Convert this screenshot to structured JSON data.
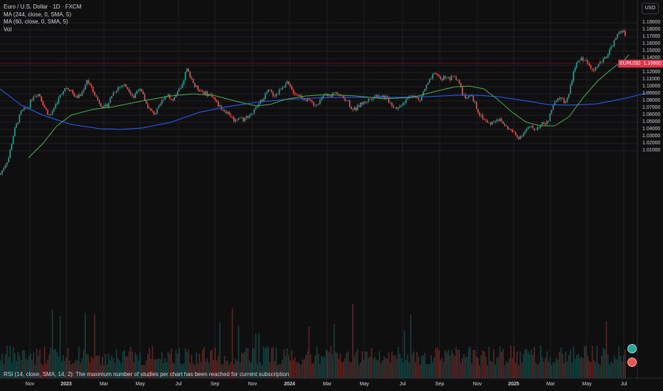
{
  "legend": {
    "title": "Euro / U.S. Dollar · 1D · FXCM",
    "ma1": "MA (244, close, 0, SMA, 5)",
    "ma2": "MA (60, close, 0, SMA, 5)",
    "vol": "Vol"
  },
  "rsi_note": "RSI (14, close, SMA, 14, 2): The maximum number of studies per chart has been reached for current subscription",
  "currency": "USD",
  "last_price": {
    "symbol": "EURUSD",
    "value": "1.16880"
  },
  "colors": {
    "up": "#26a69a",
    "down": "#ef5350",
    "ma244": "#2962ff",
    "ma60": "#4caf50",
    "tag": "#e1334a"
  },
  "icons": [
    "gear-icon",
    "alert-icon"
  ],
  "chart_data": {
    "type": "candlestick",
    "title": "Euro / U.S. Dollar · 1D · FXCM",
    "ylim": [
      1.0,
      1.195
    ],
    "y_ticks": [
      "1.19000",
      "1.18000",
      "1.17000",
      "1.16000",
      "1.15000",
      "1.14000",
      "1.13000",
      "1.12000",
      "1.11000",
      "1.10000",
      "1.09000",
      "1.08000",
      "1.07000",
      "1.06000",
      "1.05000",
      "1.04000",
      "1.03000",
      "1.02000",
      "1.01000"
    ],
    "x_ticks": [
      "Nov",
      "2023",
      "Mar",
      "May",
      "Jul",
      "Sep",
      "Nov",
      "2024",
      "Mar",
      "May",
      "Jul",
      "Sep",
      "Nov",
      "2025",
      "Mar",
      "May",
      "Jul"
    ],
    "close_path": [
      [
        0,
        0.976
      ],
      [
        12,
        1.0
      ],
      [
        20,
        1.038
      ],
      [
        30,
        1.065
      ],
      [
        40,
        1.072
      ],
      [
        47,
        1.088
      ],
      [
        55,
        1.09
      ],
      [
        62,
        1.072
      ],
      [
        70,
        1.058
      ],
      [
        78,
        1.075
      ],
      [
        86,
        1.09
      ],
      [
        92,
        1.1
      ],
      [
        100,
        1.095
      ],
      [
        106,
        1.085
      ],
      [
        114,
        1.088
      ],
      [
        122,
        1.11
      ],
      [
        130,
        1.095
      ],
      [
        138,
        1.08
      ],
      [
        146,
        1.07
      ],
      [
        152,
        1.076
      ],
      [
        158,
        1.09
      ],
      [
        166,
        1.099
      ],
      [
        174,
        1.103
      ],
      [
        182,
        1.095
      ],
      [
        188,
        1.085
      ],
      [
        194,
        1.098
      ],
      [
        200,
        1.09
      ],
      [
        206,
        1.075
      ],
      [
        212,
        1.065
      ],
      [
        218,
        1.062
      ],
      [
        224,
        1.072
      ],
      [
        230,
        1.085
      ],
      [
        236,
        1.09
      ],
      [
        242,
        1.08
      ],
      [
        250,
        1.092
      ],
      [
        256,
        1.1
      ],
      [
        262,
        1.125
      ],
      [
        268,
        1.115
      ],
      [
        274,
        1.1
      ],
      [
        282,
        1.095
      ],
      [
        290,
        1.09
      ],
      [
        298,
        1.088
      ],
      [
        306,
        1.075
      ],
      [
        314,
        1.068
      ],
      [
        322,
        1.062
      ],
      [
        330,
        1.052
      ],
      [
        336,
        1.058
      ],
      [
        342,
        1.054
      ],
      [
        350,
        1.06
      ],
      [
        356,
        1.064
      ],
      [
        362,
        1.073
      ],
      [
        370,
        1.085
      ],
      [
        378,
        1.095
      ],
      [
        384,
        1.088
      ],
      [
        390,
        1.09
      ],
      [
        396,
        1.1
      ],
      [
        404,
        1.105
      ],
      [
        410,
        1.095
      ],
      [
        416,
        1.09
      ],
      [
        422,
        1.087
      ],
      [
        430,
        1.082
      ],
      [
        436,
        1.078
      ],
      [
        442,
        1.075
      ],
      [
        450,
        1.08
      ],
      [
        456,
        1.088
      ],
      [
        462,
        1.085
      ],
      [
        468,
        1.09
      ],
      [
        474,
        1.092
      ],
      [
        480,
        1.085
      ],
      [
        488,
        1.082
      ],
      [
        494,
        1.07
      ],
      [
        500,
        1.068
      ],
      [
        506,
        1.075
      ],
      [
        512,
        1.078
      ],
      [
        518,
        1.082
      ],
      [
        526,
        1.087
      ],
      [
        534,
        1.088
      ],
      [
        542,
        1.085
      ],
      [
        548,
        1.078
      ],
      [
        554,
        1.072
      ],
      [
        560,
        1.07
      ],
      [
        566,
        1.078
      ],
      [
        572,
        1.082
      ],
      [
        578,
        1.09
      ],
      [
        584,
        1.085
      ],
      [
        590,
        1.08
      ],
      [
        596,
        1.095
      ],
      [
        602,
        1.105
      ],
      [
        608,
        1.115
      ],
      [
        614,
        1.118
      ],
      [
        620,
        1.11
      ],
      [
        626,
        1.115
      ],
      [
        632,
        1.11
      ],
      [
        638,
        1.115
      ],
      [
        644,
        1.11
      ],
      [
        650,
        1.09
      ],
      [
        656,
        1.082
      ],
      [
        662,
        1.087
      ],
      [
        668,
        1.075
      ],
      [
        674,
        1.062
      ],
      [
        680,
        1.055
      ],
      [
        686,
        1.048
      ],
      [
        692,
        1.05
      ],
      [
        698,
        1.055
      ],
      [
        704,
        1.052
      ],
      [
        710,
        1.045
      ],
      [
        716,
        1.04
      ],
      [
        722,
        1.035
      ],
      [
        728,
        1.028
      ],
      [
        734,
        1.033
      ],
      [
        740,
        1.04
      ],
      [
        746,
        1.043
      ],
      [
        752,
        1.04
      ],
      [
        758,
        1.045
      ],
      [
        764,
        1.048
      ],
      [
        770,
        1.05
      ],
      [
        776,
        1.07
      ],
      [
        782,
        1.08
      ],
      [
        788,
        1.085
      ],
      [
        794,
        1.078
      ],
      [
        800,
        1.09
      ],
      [
        806,
        1.12
      ],
      [
        812,
        1.135
      ],
      [
        818,
        1.14
      ],
      [
        824,
        1.135
      ],
      [
        830,
        1.128
      ],
      [
        836,
        1.125
      ],
      [
        842,
        1.13
      ],
      [
        848,
        1.14
      ],
      [
        854,
        1.145
      ],
      [
        860,
        1.158
      ],
      [
        866,
        1.168
      ],
      [
        872,
        1.18
      ],
      [
        876,
        1.178
      ],
      [
        880,
        1.169
      ]
    ],
    "series": [
      {
        "name": "MA (244, close, 0, SMA, 5)",
        "points": [
          [
            0,
            1.097
          ],
          [
            30,
            1.074
          ],
          [
            60,
            1.06
          ],
          [
            100,
            1.047
          ],
          [
            140,
            1.041
          ],
          [
            170,
            1.04
          ],
          [
            200,
            1.042
          ],
          [
            240,
            1.05
          ],
          [
            280,
            1.064
          ],
          [
            320,
            1.072
          ],
          [
            360,
            1.078
          ],
          [
            400,
            1.082
          ],
          [
            440,
            1.084
          ],
          [
            480,
            1.085
          ],
          [
            520,
            1.085
          ],
          [
            560,
            1.085
          ],
          [
            600,
            1.086
          ],
          [
            640,
            1.088
          ],
          [
            670,
            1.088
          ],
          [
            700,
            1.086
          ],
          [
            740,
            1.08
          ],
          [
            770,
            1.075
          ],
          [
            800,
            1.074
          ],
          [
            840,
            1.076
          ],
          [
            880,
            1.084
          ],
          [
            912,
            1.092
          ]
        ]
      },
      {
        "name": "MA (60, close, 0, SMA, 5)",
        "points": [
          [
            40,
            1.0
          ],
          [
            60,
            1.02
          ],
          [
            80,
            1.045
          ],
          [
            100,
            1.06
          ],
          [
            130,
            1.068
          ],
          [
            160,
            1.072
          ],
          [
            200,
            1.08
          ],
          [
            240,
            1.087
          ],
          [
            270,
            1.09
          ],
          [
            300,
            1.088
          ],
          [
            330,
            1.08
          ],
          [
            360,
            1.073
          ],
          [
            380,
            1.075
          ],
          [
            400,
            1.082
          ],
          [
            430,
            1.087
          ],
          [
            460,
            1.089
          ],
          [
            500,
            1.087
          ],
          [
            540,
            1.083
          ],
          [
            580,
            1.085
          ],
          [
            610,
            1.093
          ],
          [
            640,
            1.1
          ],
          [
            660,
            1.101
          ],
          [
            680,
            1.097
          ],
          [
            700,
            1.082
          ],
          [
            720,
            1.064
          ],
          [
            740,
            1.05
          ],
          [
            760,
            1.045
          ],
          [
            780,
            1.045
          ],
          [
            800,
            1.058
          ],
          [
            820,
            1.085
          ],
          [
            840,
            1.108
          ],
          [
            860,
            1.125
          ],
          [
            880,
            1.14
          ],
          [
            884,
            1.145
          ]
        ]
      }
    ],
    "volume_ylim": [
      0,
      100
    ]
  }
}
